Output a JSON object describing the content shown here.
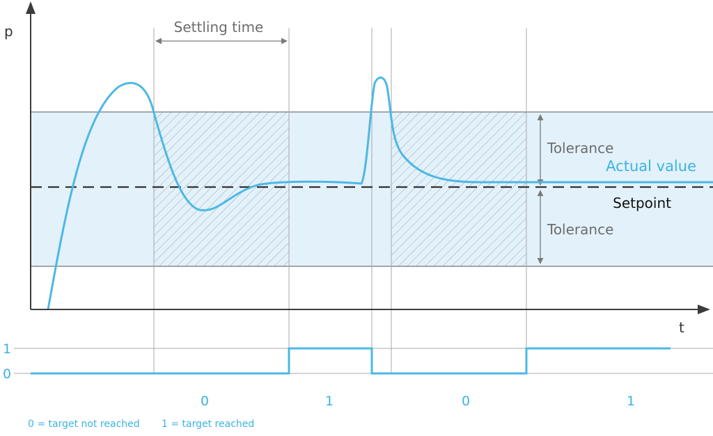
{
  "axes": {
    "y_label": "p",
    "x_label": "t"
  },
  "labels": {
    "settling_time": "Settling time",
    "tolerance_upper": "Tolerance",
    "tolerance_lower": "Tolerance",
    "actual_value": "Actual value",
    "setpoint": "Setpoint"
  },
  "signal": {
    "level_high": "1",
    "level_low": "0",
    "segments": [
      "0",
      "1",
      "0",
      "1"
    ]
  },
  "legend": {
    "zero": "0 = target not reached",
    "one": "1 = target reached"
  },
  "colors": {
    "curve": "#4cb8e4",
    "band": "#e3f1fa",
    "hatch": "#9aa8b2",
    "grid": "#9e9e9e",
    "axis": "#3c3c3c",
    "setpoint": "#333333"
  }
}
